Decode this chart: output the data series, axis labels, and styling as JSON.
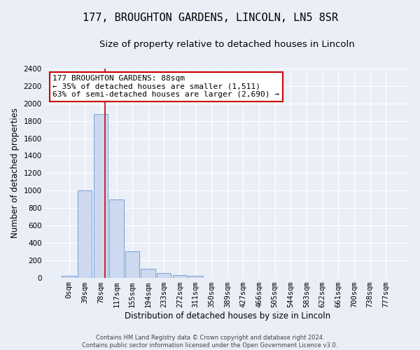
{
  "title": "177, BROUGHTON GARDENS, LINCOLN, LN5 8SR",
  "subtitle": "Size of property relative to detached houses in Lincoln",
  "xlabel": "Distribution of detached houses by size in Lincoln",
  "ylabel": "Number of detached properties",
  "categories": [
    "0sqm",
    "39sqm",
    "78sqm",
    "117sqm",
    "155sqm",
    "194sqm",
    "233sqm",
    "272sqm",
    "311sqm",
    "350sqm",
    "389sqm",
    "427sqm",
    "466sqm",
    "505sqm",
    "544sqm",
    "583sqm",
    "622sqm",
    "661sqm",
    "700sqm",
    "738sqm",
    "777sqm"
  ],
  "values": [
    20,
    1000,
    1880,
    900,
    300,
    100,
    50,
    30,
    20,
    0,
    0,
    0,
    0,
    0,
    0,
    0,
    0,
    0,
    0,
    0,
    0
  ],
  "bar_color": "#ccd9f0",
  "bar_edge_color": "#7a9fd4",
  "ylim": [
    0,
    2400
  ],
  "yticks": [
    0,
    200,
    400,
    600,
    800,
    1000,
    1200,
    1400,
    1600,
    1800,
    2000,
    2200,
    2400
  ],
  "property_line_x": 2.28,
  "property_line_color": "#cc0000",
  "annotation_box_text": "177 BROUGHTON GARDENS: 88sqm\n← 35% of detached houses are smaller (1,511)\n63% of semi-detached houses are larger (2,690) →",
  "annotation_box_color": "#cc0000",
  "footer_line1": "Contains HM Land Registry data © Crown copyright and database right 2024.",
  "footer_line2": "Contains public sector information licensed under the Open Government Licence v3.0.",
  "bg_color": "#eaeff7",
  "plot_bg_color": "#eaeff7",
  "title_fontsize": 11,
  "subtitle_fontsize": 9.5,
  "tick_fontsize": 7.5,
  "label_fontsize": 8.5,
  "annotation_fontsize": 8,
  "footer_fontsize": 6
}
